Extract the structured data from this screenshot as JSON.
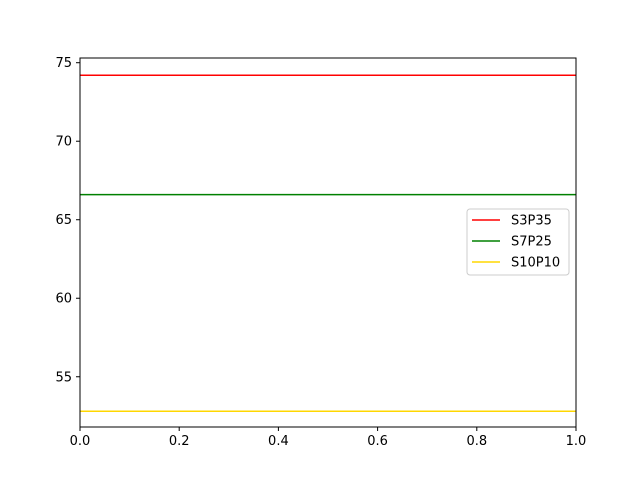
{
  "chart_data": {
    "type": "line",
    "title": "",
    "xlabel": "",
    "ylabel": "",
    "xlim": [
      0.0,
      1.0
    ],
    "ylim": [
      51.8,
      75.3
    ],
    "x_ticks": [
      0.0,
      0.2,
      0.4,
      0.6,
      0.8,
      1.0
    ],
    "x_tick_labels": [
      "0.0",
      "0.2",
      "0.4",
      "0.6",
      "0.8",
      "1.0"
    ],
    "y_ticks": [
      55,
      60,
      65,
      70,
      75
    ],
    "y_tick_labels": [
      "55",
      "60",
      "65",
      "70",
      "75"
    ],
    "grid": false,
    "legend_position": "center-right",
    "series": [
      {
        "name": "S3P35",
        "color": "#ff0000",
        "x": [
          0.0,
          1.0
        ],
        "y": [
          74.2,
          74.2
        ]
      },
      {
        "name": "S7P25",
        "color": "#008000",
        "x": [
          0.0,
          1.0
        ],
        "y": [
          66.6,
          66.6
        ]
      },
      {
        "name": "S10P10",
        "color": "#ffd700",
        "x": [
          0.0,
          1.0
        ],
        "y": [
          52.8,
          52.8
        ]
      }
    ]
  }
}
